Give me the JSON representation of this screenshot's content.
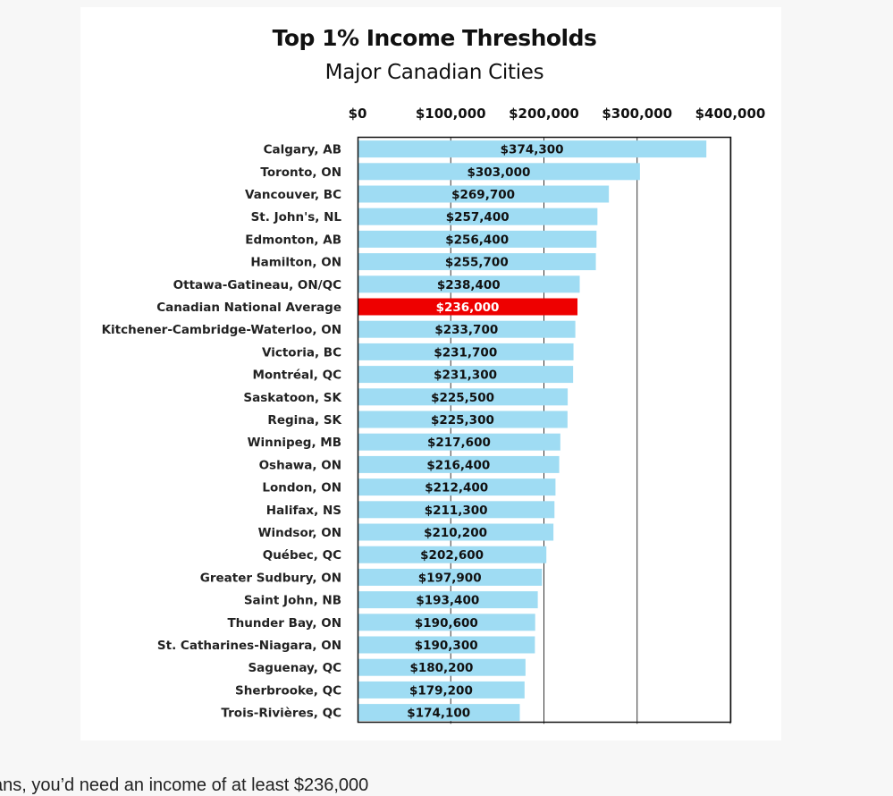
{
  "caption": "ans, you’d need an income of at least $236,000",
  "colors": {
    "bar": "#9fdcf3",
    "highlight": "#ee0000",
    "gridline": "#333333",
    "frame": "#111111",
    "background": "#ffffff"
  },
  "chart_data": {
    "type": "bar",
    "orientation": "horizontal",
    "title": "Top 1% Income Thresholds",
    "subtitle": "Major Canadian Cities",
    "xlabel": "",
    "ylabel": "",
    "xlim": [
      0,
      400000
    ],
    "x_ticks": [
      0,
      100000,
      200000,
      300000,
      400000
    ],
    "x_tick_labels": [
      "$0",
      "$100,000",
      "$200,000",
      "$300,000",
      "$400,000"
    ],
    "x_axis_position": "top",
    "grid": true,
    "legend": "none",
    "highlight_category": "Canadian National Average",
    "categories": [
      "Calgary, AB",
      "Toronto, ON",
      "Vancouver, BC",
      "St. John's, NL",
      "Edmonton, AB",
      "Hamilton, ON",
      "Ottawa-Gatineau, ON/QC",
      "Canadian National Average",
      "Kitchener-Cambridge-Waterloo, ON",
      "Victoria, BC",
      "Montréal, QC",
      "Saskatoon, SK",
      "Regina, SK",
      "Winnipeg, MB",
      "Oshawa, ON",
      "London, ON",
      "Halifax, NS",
      "Windsor, ON",
      "Québec, QC",
      "Greater Sudbury, ON",
      "Saint John, NB",
      "Thunder Bay, ON",
      "St. Catharines-Niagara, ON",
      "Saguenay, QC",
      "Sherbrooke, QC",
      "Trois-Rivières, QC"
    ],
    "values": [
      374300,
      303000,
      269700,
      257400,
      256400,
      255700,
      238400,
      236000,
      233700,
      231700,
      231300,
      225500,
      225300,
      217600,
      216400,
      212400,
      211300,
      210200,
      202600,
      197900,
      193400,
      190600,
      190300,
      180200,
      179200,
      174100
    ],
    "value_labels": [
      "$374,300",
      "$303,000",
      "$269,700",
      "$257,400",
      "$256,400",
      "$255,700",
      "$238,400",
      "$236,000",
      "$233,700",
      "$231,700",
      "$231,300",
      "$225,500",
      "$225,300",
      "$217,600",
      "$216,400",
      "$212,400",
      "$211,300",
      "$210,200",
      "$202,600",
      "$197,900",
      "$193,400",
      "$190,600",
      "$190,300",
      "$180,200",
      "$179,200",
      "$174,100"
    ]
  }
}
